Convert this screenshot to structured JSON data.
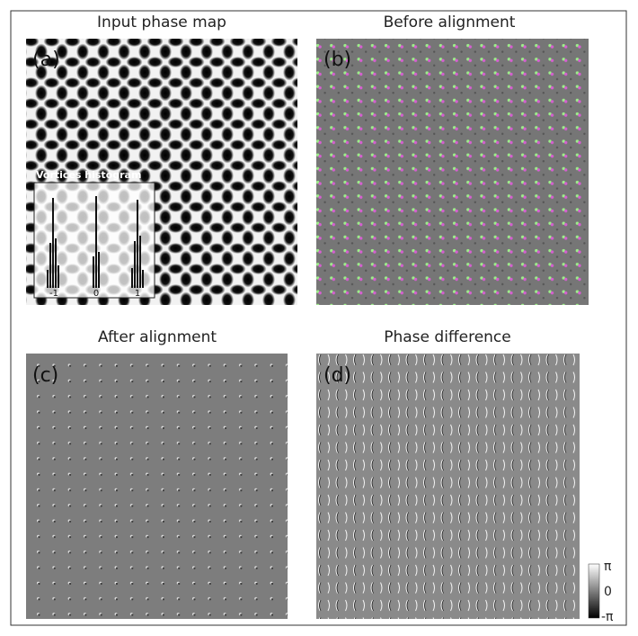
{
  "panels": [
    {
      "title": "Input phase map",
      "label": "(a)",
      "inset": {
        "title": "Vortices histogram",
        "tick_labels": [
          "-1",
          "0",
          "1"
        ]
      }
    },
    {
      "title": "Before alignment",
      "label": "(b)"
    },
    {
      "title": "After alignment",
      "label": "(c)"
    },
    {
      "title": "Phase difference",
      "label": "(d)",
      "colorbar": {
        "labels": [
          "π",
          "0",
          "-π"
        ]
      }
    }
  ]
}
